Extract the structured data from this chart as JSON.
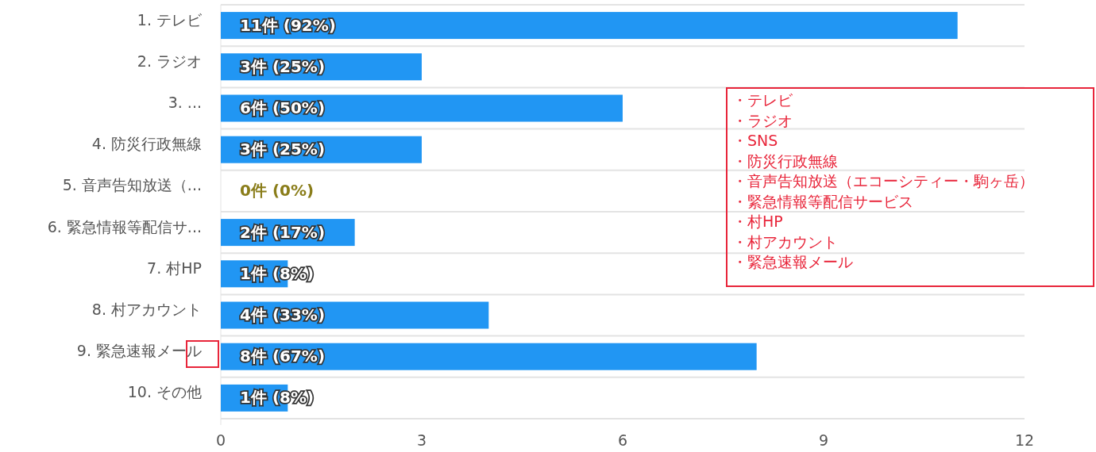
{
  "chart_data": {
    "type": "bar",
    "orientation": "horizontal",
    "categories": [
      "1. テレビ",
      "2. ラジオ",
      "3. ...",
      "4. 防災行政無線",
      "5. 音声告知放送（...",
      "6. 緊急情報等配信サ...",
      "7. 村HP",
      "8. 村アカウント",
      "9. 緊急速報メール",
      "10. その他"
    ],
    "values": [
      11,
      3,
      6,
      3,
      0,
      2,
      1,
      4,
      8,
      1
    ],
    "value_labels": [
      "11件 (92%)",
      "3件 (25%)",
      "6件 (50%)",
      "3件 (25%)",
      "0件 (0%)",
      "2件 (17%)",
      "1件 (8%)",
      "4件 (33%)",
      "8件 (67%)",
      "1件 (8%)"
    ],
    "color": "#2196f3",
    "xlim": [
      0,
      12
    ],
    "xticks": [
      0,
      3,
      6,
      9,
      12
    ],
    "grid": "y",
    "annotations": [
      "・テレビ",
      "・ラジオ",
      "・SNS",
      "・防災行政無線",
      "・音声告知放送（エコーシティー・駒ヶ岳）",
      "・緊急情報等配信サービス",
      "・村HP",
      "・村アカウント",
      "・緊急速報メール"
    ]
  }
}
